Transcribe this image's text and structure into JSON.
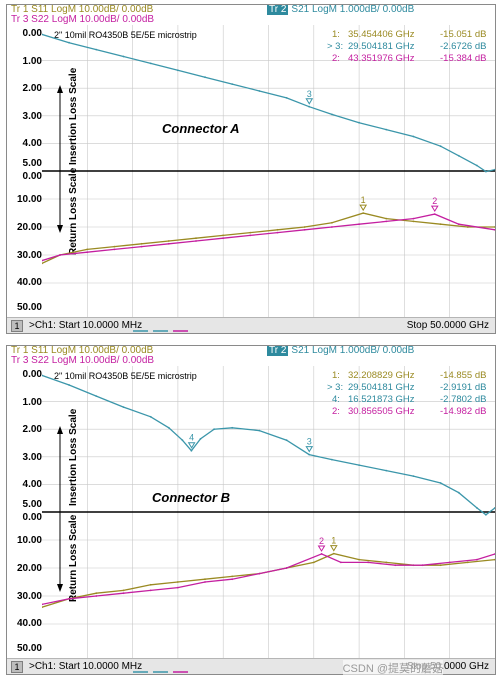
{
  "colors": {
    "s11": "#9a8a22",
    "s22": "#c41fa0",
    "s21": "#3b96aa",
    "grid": "#c8c8c8",
    "ref": "#000000"
  },
  "header": {
    "tr1": "Tr 1  S11 LogM 10.00dB/ 0.00dB",
    "tr3": "Tr 3  S22 LogM 10.00dB/ 0.00dB",
    "tr2_tag": "Tr 2",
    "tr2": "S21 LogM 1.000dB/ 0.00dB"
  },
  "footer": {
    "ch_index": "1",
    "start": ">Ch1: Start  10.0000 MHz",
    "stop": "Stop  50.0000 GHz"
  },
  "chart_data": [
    {
      "type": "line",
      "annotation": "2\" 10mil RO4350B 5E/5E microstrip",
      "connector_label": "Connector A",
      "ylabel_insertion": "Insertion Loss Scale",
      "ylabel_return": "Return Loss Scale",
      "x_range_ghz": [
        0.01,
        50
      ],
      "insertion_ticks": [
        "0.00",
        "1.00",
        "2.00",
        "3.00",
        "4.00",
        "5.00"
      ],
      "return_ticks": [
        "0.00",
        "10.00",
        "20.00",
        "30.00",
        "40.00",
        "50.00"
      ],
      "ylim_insertion_db": [
        0,
        5
      ],
      "ylim_return_db": [
        0,
        50
      ],
      "markers": [
        {
          "label": "1:",
          "freq": "35.454406 GHz",
          "value": "-15.051 dB"
        },
        {
          "label": "> 3:",
          "freq": "29.504181 GHz",
          "value": "-2.6726 dB"
        },
        {
          "label": "2:",
          "freq": "43.351976 GHz",
          "value": "-15.384 dB"
        }
      ],
      "series": [
        {
          "name": "S21",
          "trace": "Tr 2",
          "scale": "insertion",
          "x": [
            0,
            3,
            6,
            9,
            12,
            15,
            18,
            21,
            24,
            27,
            29.5,
            32,
            35,
            38,
            41,
            44,
            46,
            48,
            49,
            50
          ],
          "values": [
            0.05,
            0.35,
            0.6,
            0.85,
            1.1,
            1.35,
            1.6,
            1.85,
            2.1,
            2.35,
            2.67,
            2.95,
            3.25,
            3.5,
            3.75,
            4.1,
            4.45,
            4.8,
            5.02,
            4.95
          ]
        },
        {
          "name": "S11",
          "trace": "Tr 1",
          "scale": "return",
          "x": [
            0,
            2,
            5,
            8,
            11,
            14,
            17,
            20,
            23,
            26,
            29,
            32,
            35.45,
            38,
            41,
            44,
            47,
            50
          ],
          "values": [
            33,
            30,
            28,
            27,
            26,
            25,
            24,
            23,
            22,
            21,
            20,
            18.5,
            15.05,
            17,
            18,
            19,
            20,
            20
          ]
        },
        {
          "name": "S22",
          "trace": "Tr 3",
          "scale": "return",
          "x": [
            0,
            2,
            5,
            8,
            11,
            14,
            17,
            20,
            23,
            26,
            29,
            32,
            35,
            38,
            41,
            43.35,
            46,
            50
          ],
          "values": [
            32,
            30,
            29,
            28,
            27,
            26,
            25,
            24,
            23,
            22,
            21,
            20,
            19,
            18,
            17,
            15.38,
            19,
            21
          ]
        }
      ],
      "marker_points": [
        {
          "id": "3",
          "series": "S21",
          "x": 29.504181,
          "y": 2.6726
        },
        {
          "id": "1",
          "series": "S11",
          "x": 35.454406,
          "y": 15.051
        },
        {
          "id": "2",
          "series": "S22",
          "x": 43.351976,
          "y": 15.384
        }
      ]
    },
    {
      "type": "line",
      "annotation": "2\" 10mil RO4350B 5E/5E microstrip",
      "connector_label": "Connector B",
      "ylabel_insertion": "Insertion Loss Scale",
      "ylabel_return": "Return Loss Scale",
      "x_range_ghz": [
        0.01,
        50
      ],
      "insertion_ticks": [
        "0.00",
        "1.00",
        "2.00",
        "3.00",
        "4.00",
        "5.00"
      ],
      "return_ticks": [
        "0.00",
        "10.00",
        "20.00",
        "30.00",
        "40.00",
        "50.00"
      ],
      "ylim_insertion_db": [
        0,
        5
      ],
      "ylim_return_db": [
        0,
        50
      ],
      "markers": [
        {
          "label": "1:",
          "freq": "32.208829 GHz",
          "value": "-14.855 dB"
        },
        {
          "label": "> 3:",
          "freq": "29.504181 GHz",
          "value": "-2.9191 dB"
        },
        {
          "label": "4:",
          "freq": "16.521873 GHz",
          "value": "-2.7802 dB"
        },
        {
          "label": "2:",
          "freq": "30.856505 GHz",
          "value": "-14.982 dB"
        }
      ],
      "series": [
        {
          "name": "S21",
          "trace": "Tr 2",
          "scale": "insertion",
          "x": [
            0,
            3,
            6,
            9,
            12,
            14,
            15.5,
            16.5,
            17.5,
            19,
            21,
            24,
            27,
            29.5,
            32,
            35,
            38,
            41,
            44,
            46,
            48,
            49,
            50
          ],
          "values": [
            0.05,
            0.4,
            0.8,
            1.2,
            1.55,
            1.95,
            2.4,
            2.78,
            2.35,
            2.0,
            1.95,
            2.05,
            2.4,
            2.92,
            3.1,
            3.3,
            3.5,
            3.7,
            3.95,
            4.3,
            4.85,
            5.1,
            4.85
          ]
        },
        {
          "name": "S11",
          "trace": "Tr 1",
          "scale": "return",
          "x": [
            0,
            3,
            6,
            9,
            12,
            15,
            18,
            21,
            24,
            27,
            30,
            32.21,
            35,
            38,
            41,
            44,
            47,
            50
          ],
          "values": [
            34,
            31,
            29,
            28,
            26,
            25,
            24,
            23,
            22,
            20,
            18,
            14.86,
            17,
            18,
            19,
            19,
            18,
            17
          ]
        },
        {
          "name": "S22",
          "trace": "Tr 3",
          "scale": "return",
          "x": [
            0,
            3,
            6,
            9,
            12,
            15,
            18,
            21,
            24,
            27,
            30.86,
            33,
            36,
            39,
            42,
            45,
            48,
            50
          ],
          "values": [
            33,
            31,
            30,
            29,
            28,
            27,
            25,
            24,
            22,
            20,
            14.98,
            18,
            18,
            19,
            19,
            18,
            17,
            15
          ]
        }
      ],
      "marker_points": [
        {
          "id": "4",
          "series": "S21",
          "x": 16.521873,
          "y": 2.7802
        },
        {
          "id": "3",
          "series": "S21",
          "x": 29.504181,
          "y": 2.9191
        },
        {
          "id": "1",
          "series": "S11",
          "x": 32.208829,
          "y": 14.855
        },
        {
          "id": "2",
          "series": "S22",
          "x": 30.856505,
          "y": 14.982
        }
      ]
    }
  ],
  "watermark": "CSDN @提莫的蘑菇"
}
